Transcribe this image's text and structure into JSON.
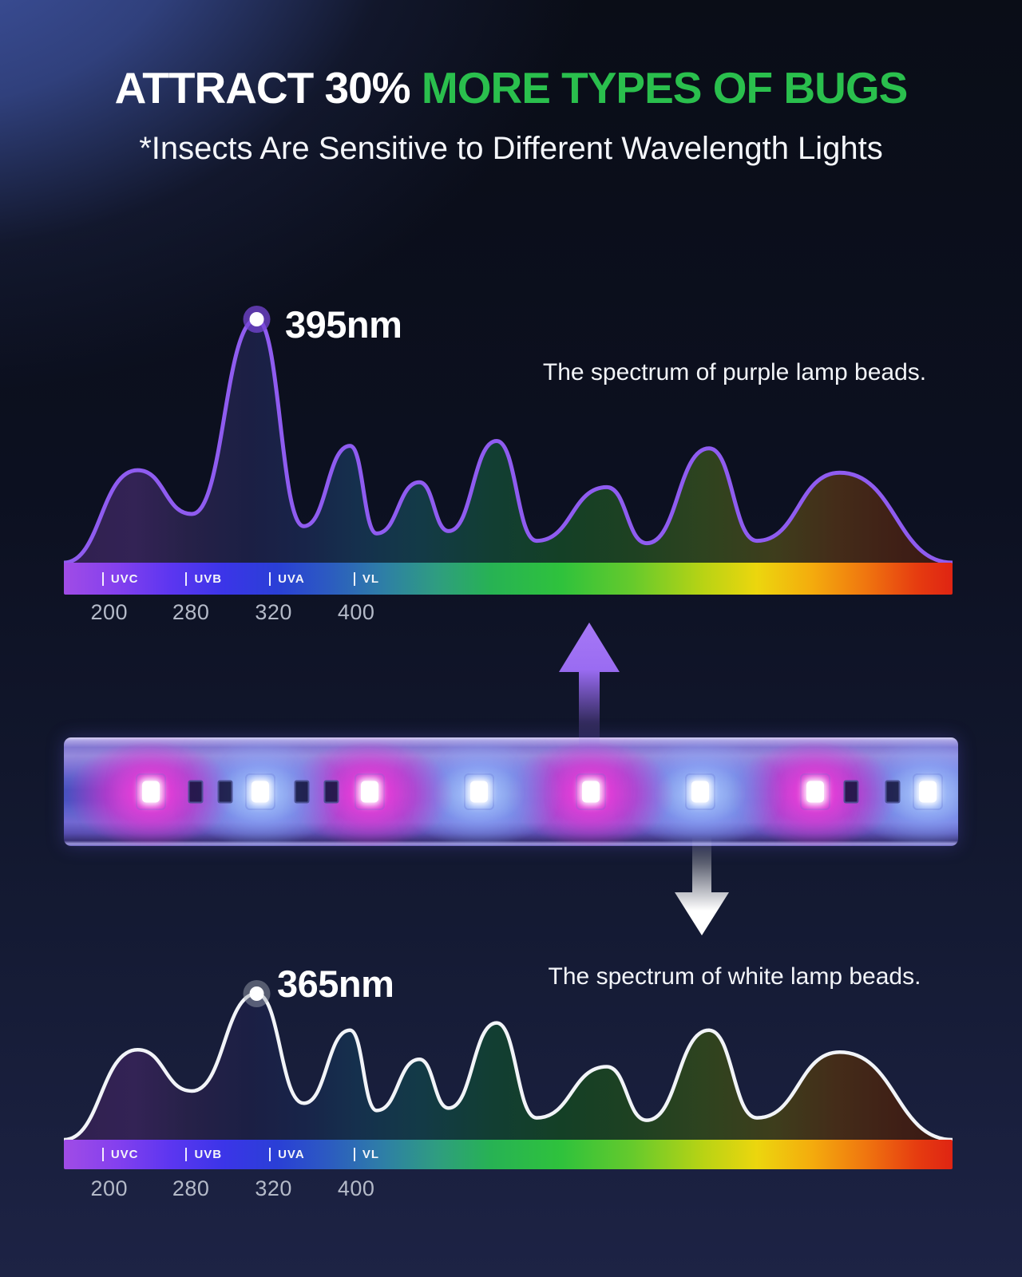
{
  "header": {
    "title_part1": "ATTRACT 30% ",
    "title_part2": "MORE TYPES OF BUGS",
    "subtitle": "*Insects Are Sensitive to Different Wavelength Lights",
    "accent_green": "#2abf4d"
  },
  "chart_data": [
    {
      "type": "area",
      "series_name": "Spectrum of purple lamp beads",
      "caption": "The spectrum of purple lamp beads.",
      "peak_label": "395nm",
      "peak_wavelength_nm": 395,
      "line_color": "#8f5cf0",
      "dot_halo_color": "rgba(118,70,214,0.75)",
      "dot_core_color": "#ffffff",
      "x_bands": [
        {
          "label": "UVC",
          "pos_pct": 4.3
        },
        {
          "label": "UVB",
          "pos_pct": 13.7
        },
        {
          "label": "UVA",
          "pos_pct": 23.1
        },
        {
          "label": "VL",
          "pos_pct": 32.6
        }
      ],
      "x_ticks": [
        {
          "label": "200",
          "pos_pct": 5.1
        },
        {
          "label": "280",
          "pos_pct": 14.3
        },
        {
          "label": "320",
          "pos_pct": 23.6
        },
        {
          "label": "400",
          "pos_pct": 32.9
        }
      ],
      "points_pos_pct_intensity": [
        [
          0,
          0
        ],
        [
          8.3,
          0.38
        ],
        [
          14.4,
          0.2
        ],
        [
          21.7,
          1.0
        ],
        [
          27.0,
          0.15
        ],
        [
          32.2,
          0.48
        ],
        [
          35.2,
          0.12
        ],
        [
          40.0,
          0.33
        ],
        [
          43.3,
          0.13
        ],
        [
          48.7,
          0.5
        ],
        [
          53.2,
          0.09
        ],
        [
          61.1,
          0.31
        ],
        [
          65.6,
          0.08
        ],
        [
          72.6,
          0.47
        ],
        [
          78.0,
          0.09
        ],
        [
          87.3,
          0.37
        ],
        [
          100,
          0
        ]
      ],
      "grid": false,
      "legend": false
    },
    {
      "type": "area",
      "series_name": "Spectrum of white lamp beads",
      "caption": "The spectrum of white lamp beads.",
      "peak_label": "365nm",
      "peak_wavelength_nm": 365,
      "line_color": "#f2f4f8",
      "dot_halo_color": "rgba(165,170,182,0.45)",
      "dot_core_color": "#ffffff",
      "x_bands": [
        {
          "label": "UVC",
          "pos_pct": 4.3
        },
        {
          "label": "UVB",
          "pos_pct": 13.7
        },
        {
          "label": "UVA",
          "pos_pct": 23.1
        },
        {
          "label": "VL",
          "pos_pct": 32.6
        }
      ],
      "x_ticks": [
        {
          "label": "200",
          "pos_pct": 5.1
        },
        {
          "label": "280",
          "pos_pct": 14.3
        },
        {
          "label": "320",
          "pos_pct": 23.6
        },
        {
          "label": "400",
          "pos_pct": 32.9
        }
      ],
      "points_pos_pct_intensity": [
        [
          0,
          0
        ],
        [
          8.3,
          0.37
        ],
        [
          14.4,
          0.2
        ],
        [
          21.7,
          0.6
        ],
        [
          27.0,
          0.15
        ],
        [
          32.2,
          0.45
        ],
        [
          35.2,
          0.12
        ],
        [
          40.0,
          0.33
        ],
        [
          43.3,
          0.13
        ],
        [
          48.7,
          0.48
        ],
        [
          53.2,
          0.09
        ],
        [
          61.1,
          0.3
        ],
        [
          65.6,
          0.08
        ],
        [
          72.6,
          0.45
        ],
        [
          78.0,
          0.09
        ],
        [
          87.3,
          0.36
        ],
        [
          100,
          0
        ]
      ],
      "grid": false,
      "legend": false
    }
  ],
  "spectrum_bar_colors": [
    {
      "p": 0,
      "c": "#a04ce6"
    },
    {
      "p": 6,
      "c": "#8440ee"
    },
    {
      "p": 12,
      "c": "#5c36f0"
    },
    {
      "p": 18,
      "c": "#3b35e8"
    },
    {
      "p": 24,
      "c": "#2a3fd6"
    },
    {
      "p": 30,
      "c": "#2c5cc0"
    },
    {
      "p": 36,
      "c": "#2e7fa6"
    },
    {
      "p": 42,
      "c": "#2f9d80"
    },
    {
      "p": 48,
      "c": "#27b254"
    },
    {
      "p": 56,
      "c": "#2fc23c"
    },
    {
      "p": 64,
      "c": "#66ca2c"
    },
    {
      "p": 72,
      "c": "#b9d314"
    },
    {
      "p": 78,
      "c": "#ecd60e"
    },
    {
      "p": 84,
      "c": "#f4ad0d"
    },
    {
      "p": 90,
      "c": "#f0780f"
    },
    {
      "p": 96,
      "c": "#e63c10"
    },
    {
      "p": 100,
      "c": "#df2413"
    }
  ],
  "area_fill_stops": [
    {
      "p": 0,
      "c": "#30204f"
    },
    {
      "p": 8,
      "c": "#332355"
    },
    {
      "p": 14,
      "c": "#262148"
    },
    {
      "p": 21,
      "c": "#1b1f44"
    },
    {
      "p": 27,
      "c": "#182449"
    },
    {
      "p": 33,
      "c": "#15304d"
    },
    {
      "p": 40,
      "c": "#133a47"
    },
    {
      "p": 48,
      "c": "#123e33"
    },
    {
      "p": 56,
      "c": "#144026"
    },
    {
      "p": 64,
      "c": "#1e4122"
    },
    {
      "p": 72,
      "c": "#2e431f"
    },
    {
      "p": 80,
      "c": "#3e3d1c"
    },
    {
      "p": 87,
      "c": "#442c19"
    },
    {
      "p": 94,
      "c": "#3f1f16"
    },
    {
      "p": 100,
      "c": "#371713"
    }
  ],
  "strip": {
    "description": "LED strip with alternating purple and white lamp beads",
    "leds": [
      {
        "type": "purple",
        "pos_pct": 9.7
      },
      {
        "type": "white",
        "pos_pct": 22.0
      },
      {
        "type": "purple",
        "pos_pct": 34.2
      },
      {
        "type": "white",
        "pos_pct": 46.4
      },
      {
        "type": "purple",
        "pos_pct": 58.9
      },
      {
        "type": "white",
        "pos_pct": 71.2
      },
      {
        "type": "purple",
        "pos_pct": 84.0
      },
      {
        "type": "white",
        "pos_pct": 96.6
      }
    ],
    "components_pos_pct": [
      14.7,
      18.0,
      26.6,
      29.9,
      88.0,
      92.7
    ],
    "glow": {
      "purple": {
        "core": "rgba(255,80,230,0.95)",
        "mid": "rgba(230,45,210,0.55)",
        "halo": "rgba(255,60,220,0.33)"
      },
      "white": {
        "core": "rgba(205,225,255,0.95)",
        "mid": "rgba(140,175,255,0.50)",
        "halo": "rgba(150,190,255,0.30)"
      }
    }
  },
  "arrows": {
    "up_color": "#a678f5",
    "down_color": "#ffffff"
  }
}
